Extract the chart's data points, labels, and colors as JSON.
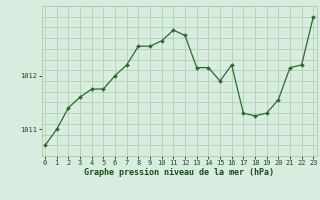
{
  "hours": [
    0,
    1,
    2,
    3,
    4,
    5,
    6,
    7,
    8,
    9,
    10,
    11,
    12,
    13,
    14,
    15,
    16,
    17,
    18,
    19,
    20,
    21,
    22,
    23
  ],
  "pressure": [
    1010.7,
    1011.0,
    1011.4,
    1011.6,
    1011.75,
    1011.75,
    1012.0,
    1012.2,
    1012.55,
    1012.55,
    1012.65,
    1012.85,
    1012.75,
    1012.15,
    1012.15,
    1011.9,
    1012.2,
    1011.3,
    1011.25,
    1011.3,
    1011.55,
    1012.15,
    1012.2,
    1013.1
  ],
  "line_color": "#2d6a2d",
  "marker_color": "#2d6a2d",
  "bg_color": "#d8ede0",
  "grid_color": "#a8cca8",
  "xlabel": "Graphe pression niveau de la mer (hPa)",
  "xlabel_color": "#1a4a1a",
  "yticks": [
    1011,
    1012
  ],
  "ymin": 1010.5,
  "ymax": 1013.3,
  "xmin": 0,
  "xmax": 23,
  "tick_font_size": 5.0,
  "label_font_size": 6.0
}
